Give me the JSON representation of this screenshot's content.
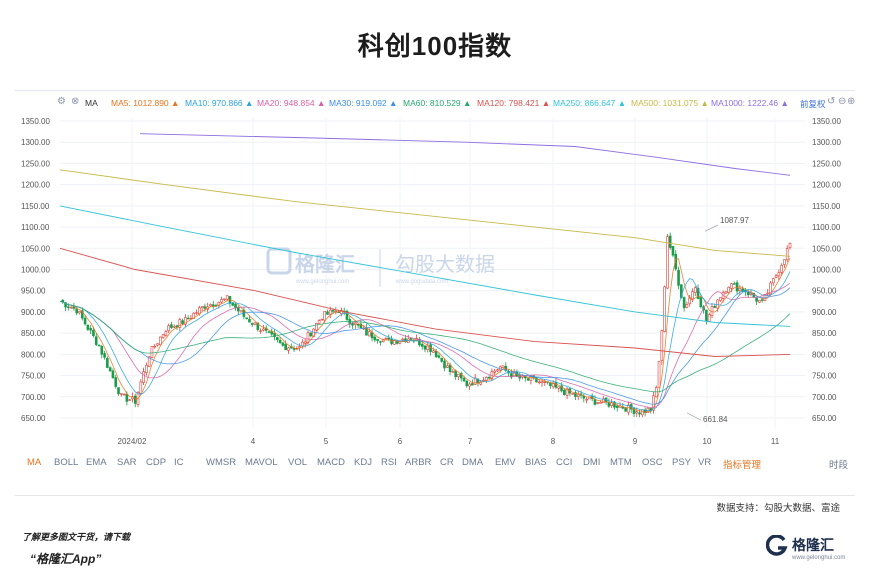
{
  "title": "科创100指数",
  "toolbar": {
    "indicator": "MA",
    "ma_values": [
      {
        "label": "MA5: 1012.890",
        "color": "#e8741f"
      },
      {
        "label": "MA10: 970.866",
        "color": "#2aa3e0"
      },
      {
        "label": "MA20: 948.854",
        "color": "#d65fa6"
      },
      {
        "label": "MA30: 919.092",
        "color": "#3b8ee8"
      },
      {
        "label": "MA60: 810.529",
        "color": "#27a86a"
      },
      {
        "label": "MA120: 798.421",
        "color": "#d9534f"
      },
      {
        "label": "MA250: 866.647",
        "color": "#33c3d8"
      },
      {
        "label": "MA500: 1031.075",
        "color": "#c9b94a"
      },
      {
        "label": "MA1000: 1222.46",
        "color": "#8d6fe0"
      }
    ],
    "right_label": "前复权"
  },
  "chart_data": {
    "type": "line",
    "title": "科创100指数",
    "y_ticks": [
      "1350.00",
      "1300.00",
      "1250.00",
      "1200.00",
      "1150.00",
      "1100.00",
      "1050.00",
      "1000.00",
      "950.00",
      "900.00",
      "850.00",
      "800.00",
      "750.00",
      "700.00",
      "650.00"
    ],
    "ylim": [
      625,
      1360
    ],
    "x_ticks": [
      "2024/02",
      "4",
      "5",
      "6",
      "7",
      "8",
      "9",
      "10",
      "11"
    ],
    "annotations": {
      "high": "1087.97",
      "low": "661.84"
    },
    "watermark": {
      "logo": "格隆汇",
      "logo_url": "www.gelonghui.com",
      "brand": "勾股大数据",
      "brand_url": "www.gogudata.com"
    },
    "series": [
      {
        "name": "MA5",
        "color": "#e8741f"
      },
      {
        "name": "MA10",
        "color": "#2aa3e0"
      },
      {
        "name": "MA20",
        "color": "#d65fa6"
      },
      {
        "name": "MA30",
        "color": "#3b8ee8"
      },
      {
        "name": "MA60",
        "color": "#27a86a"
      },
      {
        "name": "MA120",
        "color": "#d9534f"
      },
      {
        "name": "MA250",
        "color": "#33c3d8"
      },
      {
        "name": "MA500",
        "color": "#c9b94a"
      },
      {
        "name": "MA1000",
        "color": "#8d6fe0"
      }
    ],
    "colors": {
      "up": "#e0413a",
      "down": "#1a9c4a"
    }
  },
  "indicators": [
    "MA",
    "BOLL",
    "EMA",
    "SAR",
    "CDP",
    "IC",
    "WMSR",
    "MAVOL",
    "VOL",
    "MACD",
    "KDJ",
    "RSI",
    "ARBR",
    "CR",
    "DMA",
    "EMV",
    "BIAS",
    "CCI",
    "DMI",
    "MTM",
    "OSC",
    "PSY",
    "VR",
    "指标管理",
    "时段"
  ],
  "source": "数据支持：勾股大数据、富途",
  "footer": {
    "line1": "了解更多图文干货，请下载",
    "line2": "“格隆汇App”"
  },
  "logo": {
    "text": "格隆汇",
    "sub": "www.gelonghui.com"
  }
}
